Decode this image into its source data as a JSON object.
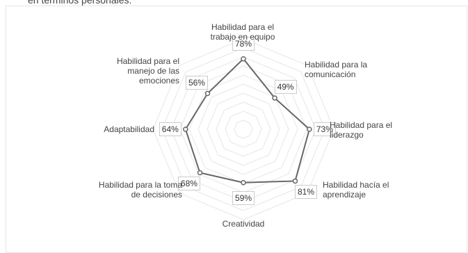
{
  "chart_data": {
    "type": "radar",
    "subtitle": "en términos personales.",
    "categories": [
      "Habilidad para el trabajo en equipo",
      "Habilidad para la comunicación",
      "Habilidad para el liderazgo",
      "Habilidad hacía el aprendizaje",
      "Creatividad",
      "Habilidad para la toma de decisiones",
      "Adaptabilidad",
      "Habilidad para el manejo de las emociones"
    ],
    "values": [
      78,
      49,
      73,
      81,
      59,
      68,
      64,
      56
    ],
    "value_labels": [
      "78%",
      "49%",
      "73%",
      "81%",
      "59%",
      "68%",
      "64%",
      "56%"
    ],
    "color": "#666666",
    "rlim": [
      0,
      100
    ],
    "rticks": [
      10,
      20,
      30,
      40,
      50,
      60,
      70,
      80,
      90,
      100
    ],
    "grid": true
  }
}
